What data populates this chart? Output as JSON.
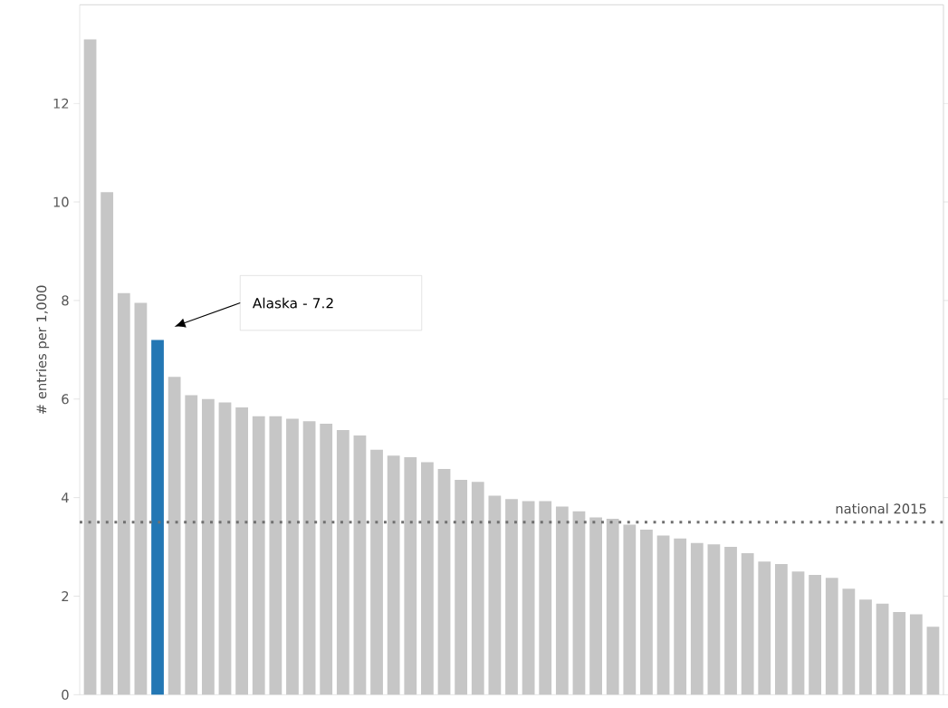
{
  "chart_data": {
    "type": "bar",
    "ylabel": "# entries per 1,000",
    "categories": [
      null,
      null,
      null,
      null,
      null,
      null,
      null,
      null,
      null,
      null,
      null,
      null,
      null,
      null,
      null,
      null,
      null,
      null,
      null,
      null,
      null,
      null,
      null,
      null,
      null,
      null,
      null,
      null,
      null,
      null,
      null,
      null,
      null,
      null,
      null,
      null,
      null,
      null,
      null,
      null,
      null,
      null,
      null,
      null,
      null,
      null,
      null,
      null,
      null,
      null,
      null
    ],
    "values": [
      13.3,
      10.2,
      8.15,
      7.95,
      7.2,
      6.45,
      6.08,
      6.0,
      5.93,
      5.83,
      5.65,
      5.65,
      5.6,
      5.55,
      5.5,
      5.37,
      5.26,
      4.97,
      4.85,
      4.82,
      4.72,
      4.58,
      4.36,
      4.32,
      4.04,
      3.97,
      3.93,
      3.93,
      3.82,
      3.72,
      3.6,
      3.57,
      3.45,
      3.35,
      3.23,
      3.17,
      3.08,
      3.05,
      3.0,
      2.87,
      2.7,
      2.65,
      2.5,
      2.43,
      2.37,
      2.15,
      1.93,
      1.85,
      1.68,
      1.63,
      1.38
    ],
    "colors": [
      "#c6c6c6",
      "#c6c6c6",
      "#c6c6c6",
      "#c6c6c6",
      "#2377b4",
      "#c6c6c6",
      "#c6c6c6",
      "#c6c6c6",
      "#c6c6c6",
      "#c6c6c6",
      "#c6c6c6",
      "#c6c6c6",
      "#c6c6c6",
      "#c6c6c6",
      "#c6c6c6",
      "#c6c6c6",
      "#c6c6c6",
      "#c6c6c6",
      "#c6c6c6",
      "#c6c6c6",
      "#c6c6c6",
      "#c6c6c6",
      "#c6c6c6",
      "#c6c6c6",
      "#c6c6c6",
      "#c6c6c6",
      "#c6c6c6",
      "#c6c6c6",
      "#c6c6c6",
      "#c6c6c6",
      "#c6c6c6",
      "#c6c6c6",
      "#c6c6c6",
      "#c6c6c6",
      "#c6c6c6",
      "#c6c6c6",
      "#c6c6c6",
      "#c6c6c6",
      "#c6c6c6",
      "#c6c6c6",
      "#c6c6c6",
      "#c6c6c6",
      "#c6c6c6",
      "#c6c6c6",
      "#c6c6c6",
      "#c6c6c6",
      "#c6c6c6",
      "#c6c6c6",
      "#c6c6c6",
      "#c6c6c6",
      "#c6c6c6"
    ],
    "ylim": [
      0,
      14
    ],
    "yticks": [
      0,
      2,
      4,
      6,
      8,
      10,
      12
    ],
    "ref_lines": [
      {
        "axis": "y",
        "value": 3.5,
        "label": "national 2015",
        "color": "#707070",
        "line_style": "dotted"
      }
    ],
    "annotations": [
      "Alaska -  7.2"
    ],
    "grid": false
  }
}
